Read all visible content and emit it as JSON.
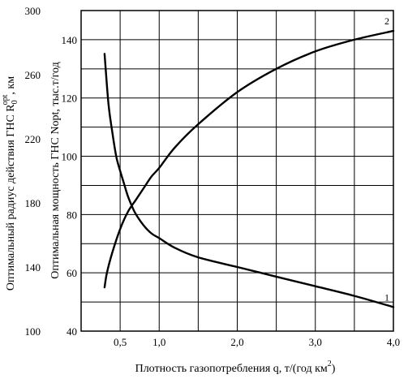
{
  "chart_data": {
    "type": "line",
    "xlabel": {
      "text": "Плотность газопотребления  q, т/(год км",
      "sup": "2",
      "tail": ")"
    },
    "ylabel_left": {
      "prefix": "Оптимальный радиус действия ГНС R",
      "sub": "0",
      "sup": "opt",
      "suffix": ", км"
    },
    "ylabel_right": "Оптимальная мощность ГНС Nopt, тыс.т/год",
    "x_ticks": [
      {
        "value": 0.5,
        "label": "0,5"
      },
      {
        "value": 1.0,
        "label": "1,0"
      },
      {
        "value": 2.0,
        "label": "2,0"
      },
      {
        "value": 3.0,
        "label": "3,0"
      },
      {
        "value": 4.0,
        "label": "4,0"
      }
    ],
    "xlim": [
      0.0,
      4.0
    ],
    "y_left_ticks": [
      "100",
      "140",
      "180",
      "220",
      "260",
      "300"
    ],
    "y_left_range": [
      100,
      300
    ],
    "y_right_ticks": [
      "40",
      "60",
      "80",
      "100",
      "120",
      "140"
    ],
    "y_right_range": [
      40,
      150
    ],
    "series": [
      {
        "name": "1",
        "axis": "left",
        "x": [
          0.3,
          0.35,
          0.4,
          0.45,
          0.5,
          0.55,
          0.6,
          0.65,
          0.7,
          0.8,
          0.9,
          1.0,
          1.2,
          1.5,
          2.0,
          2.5,
          3.0,
          3.5,
          4.0
        ],
        "y": [
          273,
          242,
          224,
          209,
          200,
          192,
          184,
          178,
          173,
          166,
          161,
          158,
          152,
          146,
          140,
          134,
          128,
          122,
          115
        ]
      },
      {
        "name": "2",
        "axis": "right",
        "x": [
          0.3,
          0.33,
          0.4,
          0.5,
          0.6,
          0.7,
          0.8,
          0.9,
          1.0,
          1.2,
          1.5,
          2.0,
          2.5,
          3.0,
          3.5,
          4.0
        ],
        "y": [
          55,
          60,
          67,
          75,
          81,
          85,
          89,
          93,
          96,
          103,
          111,
          122,
          130,
          136,
          140,
          143
        ]
      }
    ],
    "grid": true
  }
}
